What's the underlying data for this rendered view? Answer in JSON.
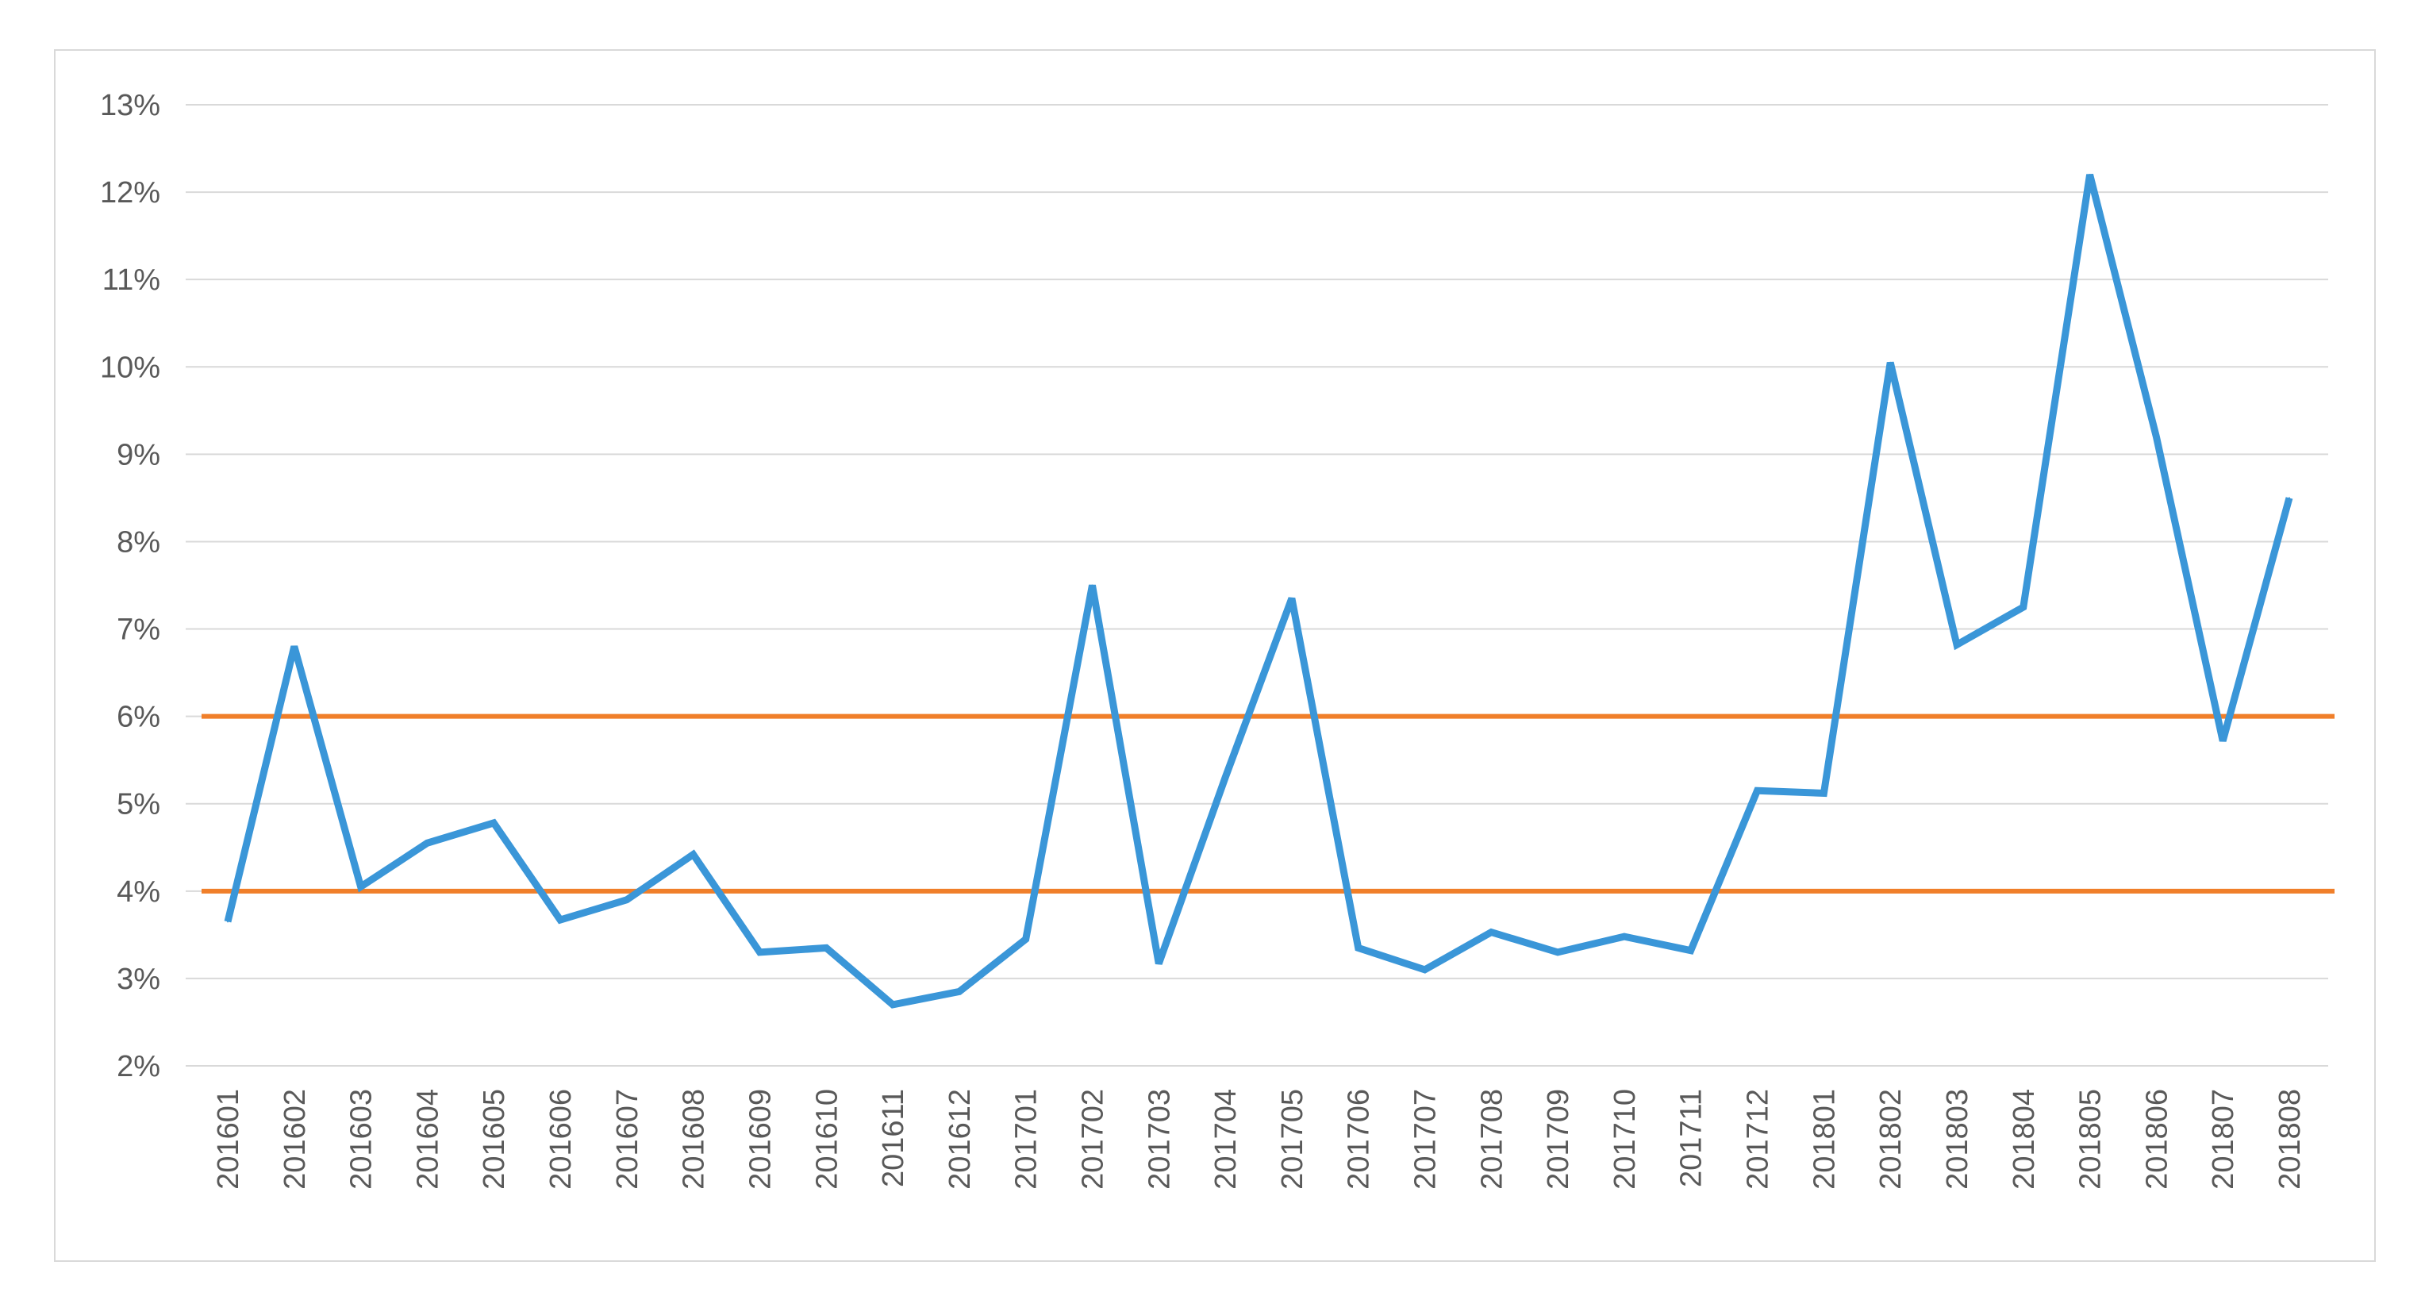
{
  "chart_data": {
    "type": "line",
    "title": "",
    "xlabel": "",
    "ylabel": "",
    "ylim": [
      2,
      13
    ],
    "y_tick_step": 1,
    "y_tick_format": "percent",
    "grid": "horizontal",
    "legend": "none",
    "categories": [
      "201601",
      "201602",
      "201603",
      "201604",
      "201605",
      "201606",
      "201607",
      "201608",
      "201609",
      "201610",
      "201611",
      "201612",
      "201701",
      "201702",
      "201703",
      "201704",
      "201705",
      "201706",
      "201707",
      "201708",
      "201709",
      "201710",
      "201711",
      "201712",
      "201801",
      "201802",
      "201803",
      "201804",
      "201805",
      "201806",
      "201807",
      "201808"
    ],
    "series": [
      {
        "color": "#3a96d8",
        "values": [
          3.65,
          6.8,
          4.05,
          4.55,
          4.78,
          3.67,
          3.9,
          4.42,
          3.3,
          3.35,
          2.7,
          2.85,
          3.45,
          7.5,
          3.17,
          5.3,
          7.35,
          3.35,
          3.1,
          3.53,
          3.3,
          3.48,
          3.32,
          5.15,
          5.12,
          10.05,
          6.82,
          7.25,
          12.2,
          9.2,
          5.72,
          8.5
        ]
      }
    ],
    "reference_lines": [
      {
        "y": 6,
        "color": "#f07f2a"
      },
      {
        "y": 4,
        "color": "#f07f2a"
      }
    ]
  }
}
